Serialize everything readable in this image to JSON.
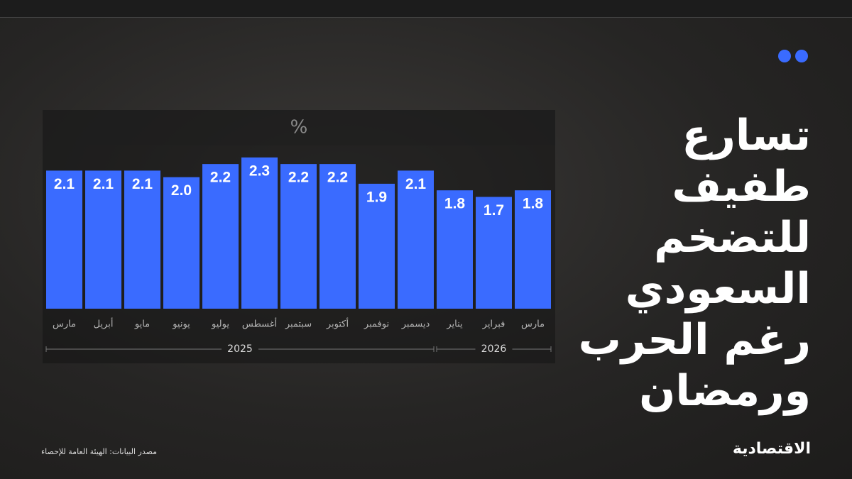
{
  "chart_data": {
    "type": "bar",
    "title": "تسارع طفيف للتضخم السعودي رغم الحرب ورمضان",
    "unit": "%",
    "color": "#3a6bff",
    "ylim": [
      0,
      3
    ],
    "groups": [
      {
        "label": "2025",
        "categories": [
          "مارس",
          "أبريل",
          "مايو",
          "يونيو",
          "يوليو",
          "أغسطس",
          "سبتمبر",
          "أكتوبر",
          "نوفمبر",
          "ديسمبر"
        ],
        "values": [
          2.1,
          2.1,
          2.1,
          2.0,
          2.2,
          2.3,
          2.2,
          2.2,
          1.9,
          2.1
        ],
        "value_labels": [
          "2.1",
          "2.1",
          "2.1",
          "2.0",
          "2.2",
          "2.3",
          "2.2",
          "2.2",
          "1.9",
          "2.1"
        ]
      },
      {
        "label": "2026",
        "categories": [
          "يناير",
          "فبراير",
          "مارس"
        ],
        "values": [
          1.8,
          1.7,
          1.8
        ],
        "value_labels": [
          "1.8",
          "1.7",
          "1.8"
        ]
      }
    ]
  },
  "source": "مصدر البيانات: الهيئة العامة للإحصاء",
  "brand": "الاقتصادية"
}
